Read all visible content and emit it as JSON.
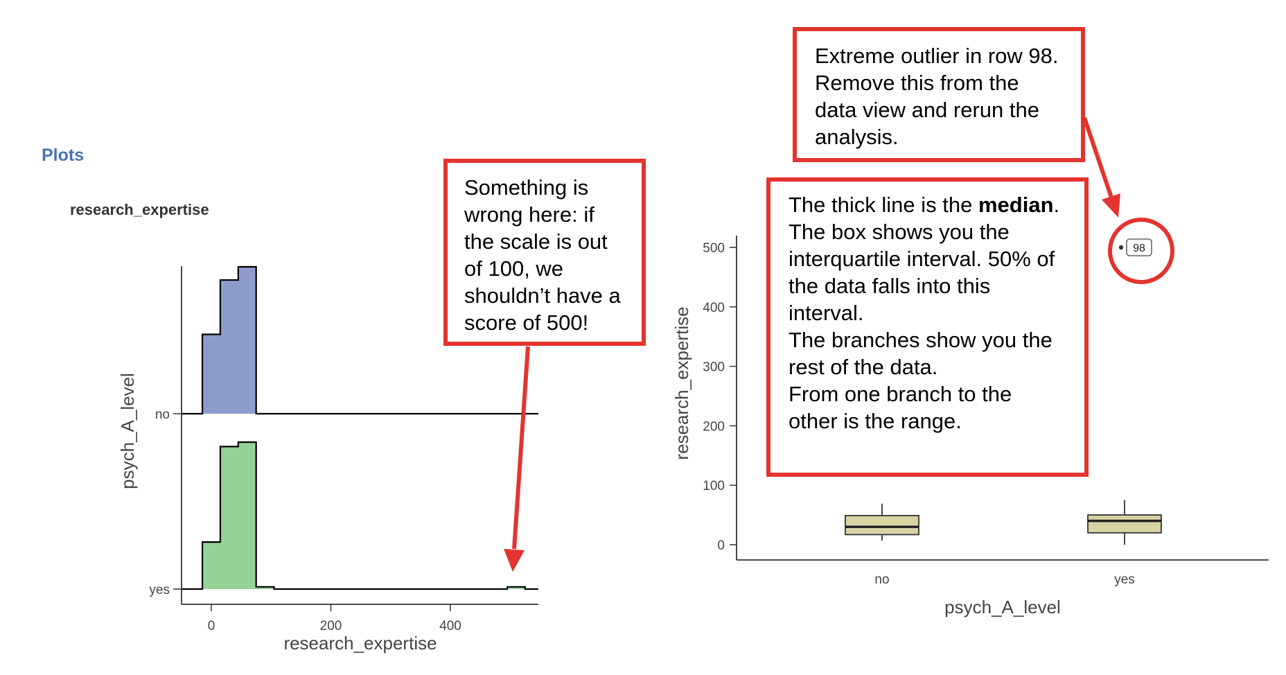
{
  "header": {
    "section_title": "Plots",
    "histogram_title": "research_expertise"
  },
  "colors": {
    "no_fill": "#8e9bcd",
    "yes_fill": "#95d295",
    "box_fill": "#d8d3a3",
    "callout_border": "#e3342f",
    "header_blue": "#4a72b0"
  },
  "chart_data": [
    {
      "type": "histogram",
      "title": "research_expertise",
      "xlabel": "research_expertise",
      "ylabel": "psych_A_level",
      "xticks": [
        0,
        200,
        400
      ],
      "xlim": [
        -50,
        550
      ],
      "grid": false,
      "bin_edges": [
        -15,
        15,
        45,
        75,
        105,
        135,
        165,
        195,
        225,
        255,
        285,
        315,
        345,
        375,
        405,
        435,
        465,
        495,
        525
      ],
      "series": [
        {
          "name": "no",
          "relative_heights": [
            0.54,
            0.91,
            1.0,
            0,
            0,
            0,
            0,
            0,
            0,
            0,
            0,
            0,
            0,
            0,
            0,
            0,
            0,
            0
          ]
        },
        {
          "name": "yes",
          "relative_heights": [
            0.32,
            0.97,
            1.0,
            0.015,
            0,
            0,
            0,
            0,
            0,
            0,
            0,
            0,
            0,
            0,
            0,
            0,
            0,
            0.015
          ]
        }
      ]
    },
    {
      "type": "box",
      "xlabel": "psych_A_level",
      "ylabel": "research_expertise",
      "categories": [
        "no",
        "yes"
      ],
      "yticks": [
        0,
        100,
        200,
        300,
        400,
        500
      ],
      "ylim": [
        -25,
        520
      ],
      "grid": false,
      "boxes": [
        {
          "category": "no",
          "min": 7,
          "q1": 17,
          "median": 30,
          "q3": 49,
          "max": 69
        },
        {
          "category": "yes",
          "min": 0,
          "q1": 20,
          "median": 40,
          "q3": 50,
          "max": 75
        }
      ],
      "outliers": [
        {
          "category": "yes",
          "value": 500,
          "label": "98"
        }
      ]
    }
  ],
  "callouts": {
    "histogram": "Something is wrong here: if the scale is out of 100, we shouldn’t have a score of 500!",
    "outlier": "Extreme outlier in row 98. Remove this from the data view and rerun the analysis.",
    "boxplot": {
      "line1_prefix": "The thick line is the ",
      "line1_bold": "median",
      "line1_suffix": ".",
      "line2": "The box shows you the interquartile interval. 50% of the data falls into this interval.",
      "line3": "The branches show you the rest of the data.",
      "line4": "From one branch to the other is the range."
    }
  }
}
